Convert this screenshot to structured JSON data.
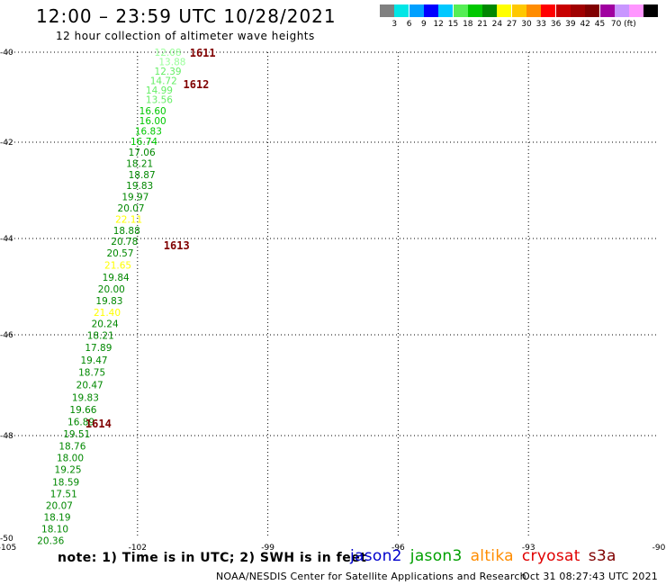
{
  "header": {
    "title": "12:00 – 23:59 UTC 10/28/2021",
    "subtitle": "12 hour collection of altimeter wave heights"
  },
  "colorbar": {
    "colors": [
      "#808080",
      "#00e6e6",
      "#00a0ff",
      "#0000ff",
      "#00c8ff",
      "#55ee55",
      "#00c800",
      "#008800",
      "#ffff00",
      "#ffc800",
      "#ff8c00",
      "#ff0000",
      "#c80000",
      "#a00000",
      "#800000",
      "#a000a0",
      "#c896ff",
      "#ff96ff",
      "#000000"
    ],
    "labels": [
      "3",
      "6",
      "9",
      "12",
      "15",
      "18",
      "21",
      "24",
      "27",
      "30",
      "33",
      "36",
      "39",
      "42",
      "45",
      "70 (ft)"
    ]
  },
  "chart_data": {
    "type": "scatter",
    "xlim": [
      -105,
      -90
    ],
    "ylim": [
      -50,
      -40
    ],
    "xticks": [
      "-105",
      "-102",
      "-99",
      "-96",
      "-93",
      "-90"
    ],
    "yticks": [
      "-40",
      "-42",
      "-44",
      "-46",
      "-48",
      "-50"
    ],
    "grid": true,
    "points": [
      {
        "lon": -101.3,
        "lat": -40.0,
        "v": "12.08",
        "c": "#99ff99"
      },
      {
        "lon": -101.2,
        "lat": -40.21,
        "v": "13.88",
        "c": "#99ff99"
      },
      {
        "lon": -101.3,
        "lat": -40.42,
        "v": "12.39",
        "c": "#66ee66"
      },
      {
        "lon": -101.4,
        "lat": -40.63,
        "v": "14.72",
        "c": "#66ee66"
      },
      {
        "lon": -101.5,
        "lat": -40.84,
        "v": "14.99",
        "c": "#66ee66"
      },
      {
        "lon": -101.5,
        "lat": -41.05,
        "v": "13.56",
        "c": "#66ee66"
      },
      {
        "lon": -101.65,
        "lat": -41.3,
        "v": "16.60",
        "c": "#00c800"
      },
      {
        "lon": -101.65,
        "lat": -41.52,
        "v": "16.00",
        "c": "#00c800"
      },
      {
        "lon": -101.75,
        "lat": -41.75,
        "v": "16.83",
        "c": "#00c800"
      },
      {
        "lon": -101.85,
        "lat": -41.98,
        "v": "16.74",
        "c": "#00c800"
      },
      {
        "lon": -101.9,
        "lat": -42.21,
        "v": "17.06",
        "c": "#008800"
      },
      {
        "lon": -101.95,
        "lat": -42.44,
        "v": "18.21",
        "c": "#008800"
      },
      {
        "lon": -101.9,
        "lat": -42.67,
        "v": "18.87",
        "c": "#008800"
      },
      {
        "lon": -101.95,
        "lat": -42.9,
        "v": "19.83",
        "c": "#008800"
      },
      {
        "lon": -102.05,
        "lat": -43.13,
        "v": "19.97",
        "c": "#008800"
      },
      {
        "lon": -102.15,
        "lat": -43.36,
        "v": "20.07",
        "c": "#008800"
      },
      {
        "lon": -102.2,
        "lat": -43.6,
        "v": "22.11",
        "c": "#ffff00"
      },
      {
        "lon": -102.25,
        "lat": -43.83,
        "v": "18.88",
        "c": "#008800"
      },
      {
        "lon": -102.3,
        "lat": -44.06,
        "v": "20.78",
        "c": "#008800"
      },
      {
        "lon": -102.4,
        "lat": -44.3,
        "v": "20.57",
        "c": "#008800"
      },
      {
        "lon": -102.45,
        "lat": -44.55,
        "v": "21.65",
        "c": "#ffff00"
      },
      {
        "lon": -102.5,
        "lat": -44.8,
        "v": "19.84",
        "c": "#008800"
      },
      {
        "lon": -102.6,
        "lat": -45.05,
        "v": "20.00",
        "c": "#008800"
      },
      {
        "lon": -102.65,
        "lat": -45.29,
        "v": "19.83",
        "c": "#008800"
      },
      {
        "lon": -102.7,
        "lat": -45.53,
        "v": "21.40",
        "c": "#ffff00"
      },
      {
        "lon": -102.75,
        "lat": -45.77,
        "v": "20.24",
        "c": "#008800"
      },
      {
        "lon": -102.85,
        "lat": -46.01,
        "v": "18.21",
        "c": "#008800"
      },
      {
        "lon": -102.9,
        "lat": -46.25,
        "v": "17.89",
        "c": "#008800"
      },
      {
        "lon": -103.0,
        "lat": -46.5,
        "v": "19.47",
        "c": "#008800"
      },
      {
        "lon": -103.05,
        "lat": -46.74,
        "v": "18.75",
        "c": "#008800"
      },
      {
        "lon": -103.1,
        "lat": -46.99,
        "v": "20.47",
        "c": "#008800"
      },
      {
        "lon": -103.2,
        "lat": -47.24,
        "v": "19.83",
        "c": "#008800"
      },
      {
        "lon": -103.25,
        "lat": -47.48,
        "v": "19.66",
        "c": "#008800"
      },
      {
        "lon": -103.3,
        "lat": -47.72,
        "v": "16.89",
        "c": "#008800"
      },
      {
        "lon": -103.4,
        "lat": -47.96,
        "v": "19.51",
        "c": "#008800"
      },
      {
        "lon": -103.5,
        "lat": -48.2,
        "v": "18.76",
        "c": "#008800"
      },
      {
        "lon": -103.55,
        "lat": -48.43,
        "v": "18.00",
        "c": "#008800"
      },
      {
        "lon": -103.6,
        "lat": -48.66,
        "v": "19.25",
        "c": "#008800"
      },
      {
        "lon": -103.65,
        "lat": -48.9,
        "v": "18.59",
        "c": "#008800"
      },
      {
        "lon": -103.7,
        "lat": -49.13,
        "v": "17.51",
        "c": "#008800"
      },
      {
        "lon": -103.8,
        "lat": -49.36,
        "v": "20.07",
        "c": "#008800"
      },
      {
        "lon": -103.85,
        "lat": -49.59,
        "v": "18.19",
        "c": "#008800"
      },
      {
        "lon": -103.9,
        "lat": -49.82,
        "v": "18.10",
        "c": "#008800"
      },
      {
        "lon": -104.0,
        "lat": -50.05,
        "v": "20.36",
        "c": "#008800"
      }
    ],
    "time_labels": [
      {
        "lon": -100.5,
        "lat": -40.0,
        "t": "1611"
      },
      {
        "lon": -100.65,
        "lat": -40.7,
        "t": "1612"
      },
      {
        "lon": -101.1,
        "lat": -44.13,
        "t": "1613"
      },
      {
        "lon": -102.9,
        "lat": -47.75,
        "t": "1614"
      }
    ]
  },
  "footer": {
    "note": "note:  1) Time is in UTC; 2) SWH is in feet",
    "legend": [
      {
        "name": "jason2",
        "color": "#0000cc"
      },
      {
        "name": "jason3",
        "color": "#00a000"
      },
      {
        "name": "altika",
        "color": "#ff8c00"
      },
      {
        "name": "cryosat",
        "color": "#e00000"
      },
      {
        "name": "s3a",
        "color": "#800000"
      }
    ],
    "credit": "NOAA/NESDIS Center for Satellite Applications and Research",
    "timestamp": "Oct 31 08:27:43 UTC 2021"
  }
}
